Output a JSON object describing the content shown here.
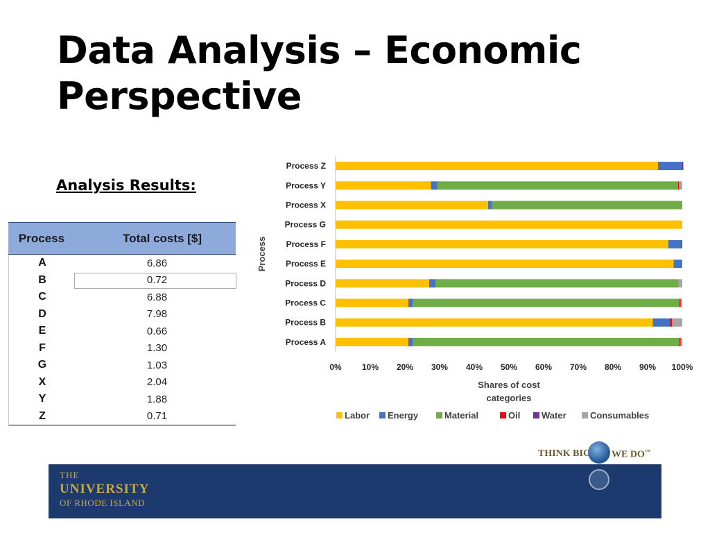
{
  "slide": {
    "title": "Data Analysis – Economic Perspective",
    "subtitle": "Analysis Results:"
  },
  "table": {
    "headers": [
      "Process",
      "Total costs [$]"
    ],
    "rows": [
      {
        "process": "A",
        "cost": "6.86"
      },
      {
        "process": "B",
        "cost": "0.72"
      },
      {
        "process": "C",
        "cost": "6.88"
      },
      {
        "process": "D",
        "cost": "7.98"
      },
      {
        "process": "E",
        "cost": "0.66"
      },
      {
        "process": "F",
        "cost": "1.30"
      },
      {
        "process": "G",
        "cost": "1.03"
      },
      {
        "process": "X",
        "cost": "2.04"
      },
      {
        "process": "Y",
        "cost": "1.88"
      },
      {
        "process": "Z",
        "cost": "0.71"
      }
    ]
  },
  "chart_data": {
    "type": "bar",
    "orientation": "horizontal",
    "stacked": true,
    "percent_stacked": true,
    "categories": [
      "Process Z",
      "Process Y",
      "Process X",
      "Process G",
      "Process F",
      "Process E",
      "Process D",
      "Process C",
      "Process B",
      "Process A"
    ],
    "series": [
      {
        "name": "Labor",
        "color": "#ffc000",
        "values": [
          93,
          27.5,
          44,
          100,
          96,
          97.5,
          27,
          21,
          91.5,
          21
        ]
      },
      {
        "name": "Energy",
        "color": "#4472c4",
        "values": [
          7,
          1.8,
          1,
          0,
          3.8,
          2.5,
          1.8,
          1.2,
          5,
          1.2
        ]
      },
      {
        "name": "Material",
        "color": "#70ad47",
        "values": [
          0,
          69.5,
          55,
          0,
          0,
          0,
          70,
          77,
          0,
          77
        ]
      },
      {
        "name": "Oil",
        "color": "#ff0000",
        "values": [
          0,
          0.2,
          0,
          0,
          0,
          0,
          0,
          0.3,
          0.5,
          0.2
        ]
      },
      {
        "name": "Water",
        "color": "#7030a0",
        "values": [
          0.3,
          0,
          0,
          0,
          0.2,
          0,
          0,
          0,
          0,
          0.1
        ]
      },
      {
        "name": "Consumables",
        "color": "#a5a5a5",
        "values": [
          0,
          1,
          0,
          0,
          0,
          0,
          1.2,
          0.5,
          3,
          0.5
        ]
      }
    ],
    "xlabel": "Shares of cost categories",
    "ylabel": "Process",
    "xlim": [
      0,
      100
    ],
    "xticks": [
      "0%",
      "10%",
      "20%",
      "30%",
      "40%",
      "50%",
      "60%",
      "70%",
      "80%",
      "90%",
      "100%"
    ],
    "grid": false,
    "legend": "bottom"
  },
  "footer": {
    "line1": "THE",
    "line2": "UNIVERSITY",
    "line3": "OF RHODE ISLAND",
    "tagline_left": "THINK BIG",
    "tagline_right": "WE DO",
    "tagline_mark": "™"
  }
}
